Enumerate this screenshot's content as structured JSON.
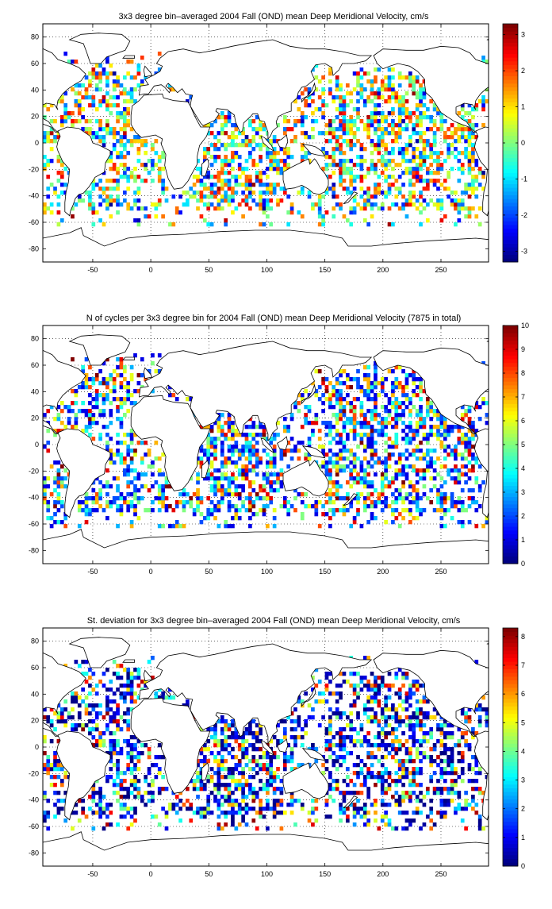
{
  "figure": {
    "x_ticks": [
      -50,
      0,
      50,
      100,
      150,
      200,
      250
    ],
    "y_ticks": [
      -80,
      -60,
      -40,
      -20,
      0,
      20,
      40,
      60,
      80
    ],
    "xlim": [
      -93,
      291
    ],
    "ylim": [
      -90,
      90
    ]
  },
  "chart_data": [
    {
      "type": "heatmap",
      "title": "3x3 degree bin–averaged 2004 Fall (OND) mean Deep Meridional Velocity, cm/s",
      "xlabel": "",
      "ylabel": "",
      "xlim": [
        -93,
        291
      ],
      "ylim": [
        -90,
        90
      ],
      "grid": true,
      "bin_size_deg": 3,
      "colormap": "jet",
      "colorbar_ticks": [
        -3,
        -2,
        -1,
        0,
        1,
        2,
        3
      ],
      "colorbar_range": [
        -3.3,
        3.3
      ],
      "seed": 11,
      "value_distribution": "signed"
    },
    {
      "type": "heatmap",
      "title": "N of cycles per 3x3 degree bin for 2004 Fall (OND) mean Deep Meridional Velocity (7875 in total)",
      "xlabel": "",
      "ylabel": "",
      "xlim": [
        -93,
        291
      ],
      "ylim": [
        -90,
        90
      ],
      "grid": true,
      "bin_size_deg": 3,
      "colormap": "jet",
      "colorbar_ticks": [
        0,
        1,
        2,
        3,
        4,
        5,
        6,
        7,
        8,
        9,
        10
      ],
      "colorbar_range": [
        0,
        10
      ],
      "seed": 23,
      "value_distribution": "counts"
    },
    {
      "type": "heatmap",
      "title": "St. deviation for 3x3 degree bin–averaged 2004 Fall (OND) mean Deep Meridional Velocity, cm/s",
      "xlabel": "",
      "ylabel": "",
      "xlim": [
        -93,
        291
      ],
      "ylim": [
        -90,
        90
      ],
      "grid": true,
      "bin_size_deg": 3,
      "colormap": "jet",
      "colorbar_ticks": [
        0,
        1,
        2,
        3,
        4,
        5,
        6,
        7,
        8
      ],
      "colorbar_range": [
        0,
        8.3
      ],
      "seed": 37,
      "value_distribution": "positive-skewed"
    }
  ]
}
